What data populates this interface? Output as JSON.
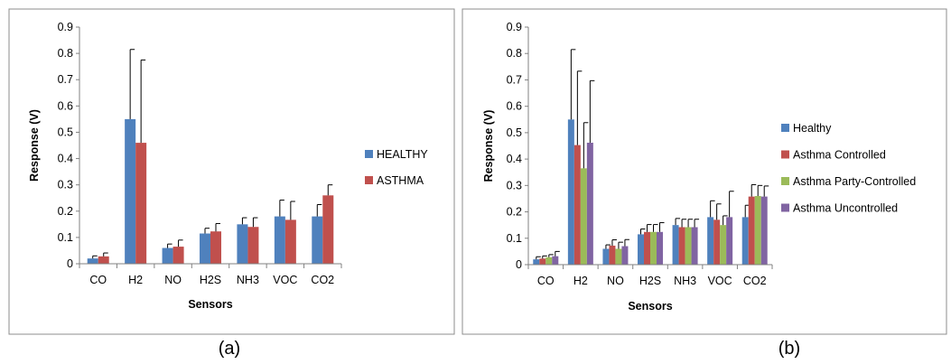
{
  "figure": {
    "caption_a": "(a)",
    "caption_b": "(b)"
  },
  "chart_data": [
    {
      "type": "bar",
      "categories": [
        "CO",
        "H2",
        "NO",
        "H2S",
        "NH3",
        "VOC",
        "CO2"
      ],
      "series": [
        {
          "name": "HEALTHY",
          "color": "#4F81BD",
          "values": [
            0.02,
            0.55,
            0.06,
            0.115,
            0.15,
            0.18,
            0.18
          ],
          "errors": [
            0.01,
            0.265,
            0.015,
            0.02,
            0.025,
            0.062,
            0.045
          ]
        },
        {
          "name": "ASTHMA",
          "color": "#C0504D",
          "values": [
            0.028,
            0.46,
            0.065,
            0.123,
            0.14,
            0.167,
            0.26
          ],
          "errors": [
            0.013,
            0.315,
            0.025,
            0.03,
            0.035,
            0.07,
            0.04
          ]
        }
      ],
      "xlabel": "Sensors",
      "ylabel": "Response (V)",
      "ylim": [
        0,
        0.9
      ],
      "yticks": [
        "0",
        "0.1",
        "0.2",
        "0.3",
        "0.4",
        "0.5",
        "0.6",
        "0.7",
        "0.8",
        "0.9"
      ],
      "legend": "right",
      "grid": false
    },
    {
      "type": "bar",
      "categories": [
        "CO",
        "H2",
        "NO",
        "H2S",
        "NH3",
        "VOC",
        "CO2"
      ],
      "series": [
        {
          "name": "Healthy",
          "color": "#4F81BD",
          "values": [
            0.02,
            0.55,
            0.06,
            0.115,
            0.15,
            0.18,
            0.18
          ],
          "errors": [
            0.01,
            0.265,
            0.015,
            0.02,
            0.025,
            0.062,
            0.045
          ]
        },
        {
          "name": "Asthma Controlled",
          "color": "#C0504D",
          "values": [
            0.023,
            0.453,
            0.072,
            0.124,
            0.142,
            0.17,
            0.258
          ],
          "errors": [
            0.01,
            0.28,
            0.022,
            0.028,
            0.03,
            0.06,
            0.045
          ]
        },
        {
          "name": "Asthma Party-Controlled",
          "color": "#9BBB59",
          "values": [
            0.028,
            0.365,
            0.06,
            0.124,
            0.142,
            0.15,
            0.26
          ],
          "errors": [
            0.01,
            0.173,
            0.025,
            0.028,
            0.03,
            0.035,
            0.04
          ]
        },
        {
          "name": "Asthma Uncontrolled",
          "color": "#8064A2",
          "values": [
            0.032,
            0.462,
            0.07,
            0.124,
            0.142,
            0.18,
            0.258
          ],
          "errors": [
            0.018,
            0.235,
            0.025,
            0.035,
            0.03,
            0.098,
            0.04
          ]
        }
      ],
      "xlabel": "Sensors",
      "ylabel": "Response (V)",
      "ylim": [
        0,
        0.9
      ],
      "yticks": [
        "0",
        "0.1",
        "0.2",
        "0.3",
        "0.4",
        "0.5",
        "0.6",
        "0.7",
        "0.8",
        "0.9"
      ],
      "legend": "right",
      "grid": false
    }
  ]
}
